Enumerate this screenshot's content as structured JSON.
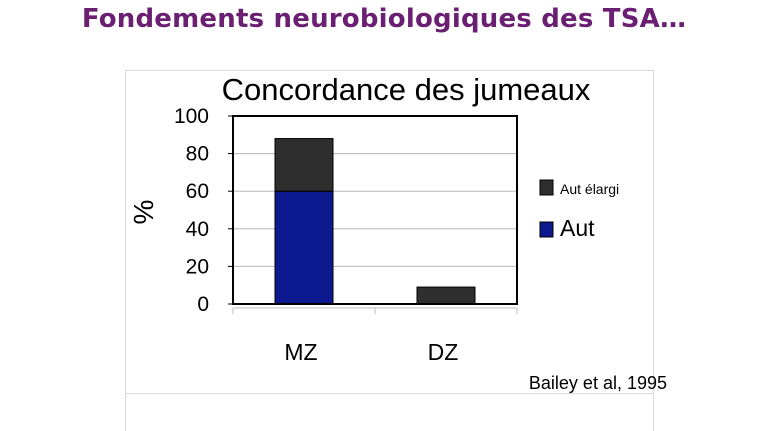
{
  "slide": {
    "title": "Fondements neurobiologiques des  TSA…"
  },
  "chart_data": {
    "type": "bar",
    "stacked": true,
    "title": "Concordance des jumeaux",
    "ylabel": "%",
    "xlabel": "",
    "categories": [
      "MZ",
      "DZ"
    ],
    "ylim": [
      0,
      100
    ],
    "yticks": [
      0,
      20,
      40,
      60,
      80,
      100
    ],
    "grid": true,
    "legend_position": "right",
    "series": [
      {
        "name": "Aut",
        "values": [
          60,
          0
        ],
        "color": "#0d1a8f"
      },
      {
        "name": "Aut élargi",
        "values": [
          28,
          9
        ],
        "color": "#2e2e2e"
      }
    ],
    "source": "Bailey et al, 1995"
  },
  "colors": {
    "title": "#6b1f73",
    "grid": "#b8b8b8",
    "plot_border": "#000000"
  }
}
